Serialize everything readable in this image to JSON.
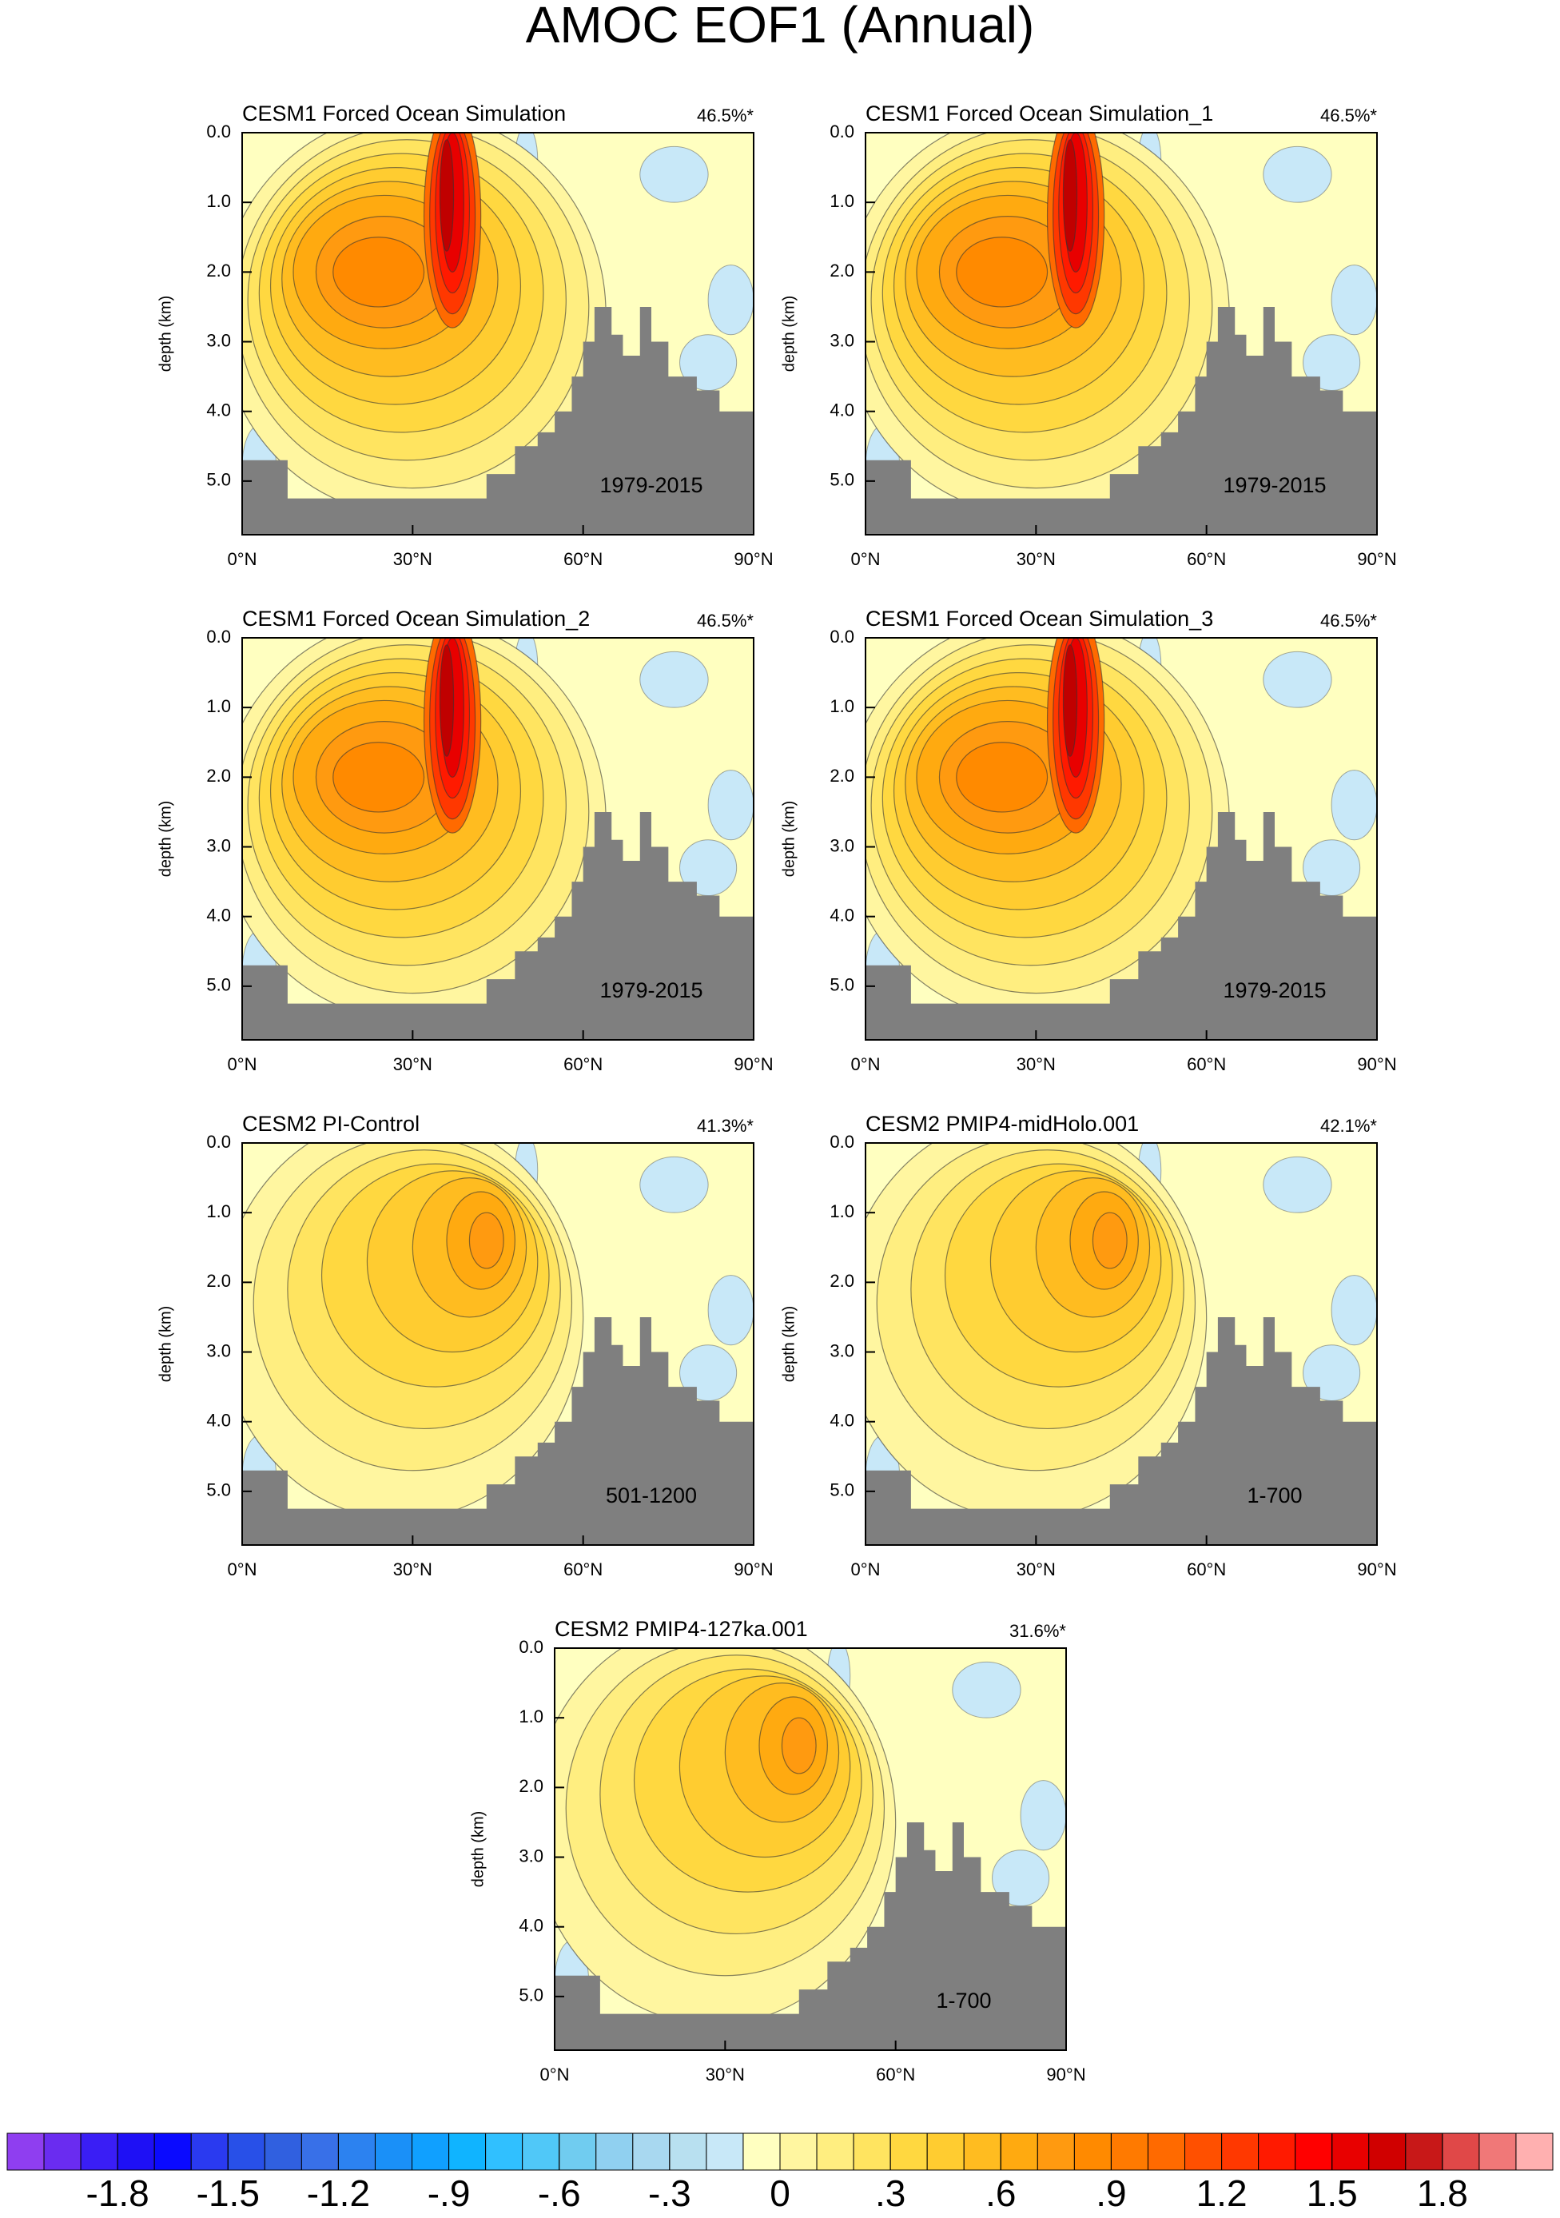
{
  "title": "AMOC EOF1 (Annual)",
  "chart_data": [
    {
      "type": "contour",
      "title": "CESM1 Forced Ocean Simulation",
      "variance": "46.5%*",
      "period": "1979-2015",
      "ylabel": "depth (km)",
      "xlim": [
        0,
        90
      ],
      "ylim": [
        0,
        5.77
      ],
      "xticks": [
        {
          "value": 0,
          "label": "0°N"
        },
        {
          "value": 30,
          "label": "30°N"
        },
        {
          "value": 60,
          "label": "60°N"
        },
        {
          "value": 90,
          "label": "90°N"
        }
      ],
      "yticks": [
        {
          "value": 0,
          "label": "0.0"
        },
        {
          "value": 1,
          "label": "1.0"
        },
        {
          "value": 2,
          "label": "2.0"
        },
        {
          "value": 3,
          "label": "3.0"
        },
        {
          "value": 4,
          "label": "4.0"
        },
        {
          "value": 5,
          "label": "5.0"
        }
      ]
    },
    {
      "type": "contour",
      "title": "CESM1 Forced Ocean Simulation_1",
      "variance": "46.5%*",
      "period": "1979-2015",
      "ylabel": "depth (km)",
      "xlim": [
        0,
        90
      ],
      "ylim": [
        0,
        5.77
      ],
      "xticks": [
        {
          "value": 0,
          "label": "0°N"
        },
        {
          "value": 30,
          "label": "30°N"
        },
        {
          "value": 60,
          "label": "60°N"
        },
        {
          "value": 90,
          "label": "90°N"
        }
      ],
      "yticks": [
        {
          "value": 0,
          "label": "0.0"
        },
        {
          "value": 1,
          "label": "1.0"
        },
        {
          "value": 2,
          "label": "2.0"
        },
        {
          "value": 3,
          "label": "3.0"
        },
        {
          "value": 4,
          "label": "4.0"
        },
        {
          "value": 5,
          "label": "5.0"
        }
      ]
    },
    {
      "type": "contour",
      "title": "CESM1 Forced Ocean Simulation_2",
      "variance": "46.5%*",
      "period": "1979-2015",
      "ylabel": "depth (km)",
      "xlim": [
        0,
        90
      ],
      "ylim": [
        0,
        5.77
      ],
      "xticks": [
        {
          "value": 0,
          "label": "0°N"
        },
        {
          "value": 30,
          "label": "30°N"
        },
        {
          "value": 60,
          "label": "60°N"
        },
        {
          "value": 90,
          "label": "90°N"
        }
      ],
      "yticks": [
        {
          "value": 0,
          "label": "0.0"
        },
        {
          "value": 1,
          "label": "1.0"
        },
        {
          "value": 2,
          "label": "2.0"
        },
        {
          "value": 3,
          "label": "3.0"
        },
        {
          "value": 4,
          "label": "4.0"
        },
        {
          "value": 5,
          "label": "5.0"
        }
      ]
    },
    {
      "type": "contour",
      "title": "CESM1 Forced Ocean Simulation_3",
      "variance": "46.5%*",
      "period": "1979-2015",
      "ylabel": "depth (km)",
      "xlim": [
        0,
        90
      ],
      "ylim": [
        0,
        5.77
      ],
      "xticks": [
        {
          "value": 0,
          "label": "0°N"
        },
        {
          "value": 30,
          "label": "30°N"
        },
        {
          "value": 60,
          "label": "60°N"
        },
        {
          "value": 90,
          "label": "90°N"
        }
      ],
      "yticks": [
        {
          "value": 0,
          "label": "0.0"
        },
        {
          "value": 1,
          "label": "1.0"
        },
        {
          "value": 2,
          "label": "2.0"
        },
        {
          "value": 3,
          "label": "3.0"
        },
        {
          "value": 4,
          "label": "4.0"
        },
        {
          "value": 5,
          "label": "5.0"
        }
      ]
    },
    {
      "type": "contour",
      "title": "CESM2 PI-Control",
      "variance": "41.3%*",
      "period": "501-1200",
      "ylabel": "depth (km)",
      "xlim": [
        0,
        90
      ],
      "ylim": [
        0,
        5.77
      ],
      "xticks": [
        {
          "value": 0,
          "label": "0°N"
        },
        {
          "value": 30,
          "label": "30°N"
        },
        {
          "value": 60,
          "label": "60°N"
        },
        {
          "value": 90,
          "label": "90°N"
        }
      ],
      "yticks": [
        {
          "value": 0,
          "label": "0.0"
        },
        {
          "value": 1,
          "label": "1.0"
        },
        {
          "value": 2,
          "label": "2.0"
        },
        {
          "value": 3,
          "label": "3.0"
        },
        {
          "value": 4,
          "label": "4.0"
        },
        {
          "value": 5,
          "label": "5.0"
        }
      ]
    },
    {
      "type": "contour",
      "title": "CESM2 PMIP4-midHolo.001",
      "variance": "42.1%*",
      "period": "1-700",
      "ylabel": "depth (km)",
      "xlim": [
        0,
        90
      ],
      "ylim": [
        0,
        5.77
      ],
      "xticks": [
        {
          "value": 0,
          "label": "0°N"
        },
        {
          "value": 30,
          "label": "30°N"
        },
        {
          "value": 60,
          "label": "60°N"
        },
        {
          "value": 90,
          "label": "90°N"
        }
      ],
      "yticks": [
        {
          "value": 0,
          "label": "0.0"
        },
        {
          "value": 1,
          "label": "1.0"
        },
        {
          "value": 2,
          "label": "2.0"
        },
        {
          "value": 3,
          "label": "3.0"
        },
        {
          "value": 4,
          "label": "4.0"
        },
        {
          "value": 5,
          "label": "5.0"
        }
      ]
    },
    {
      "type": "contour",
      "title": "CESM2 PMIP4-127ka.001",
      "variance": "31.6%*",
      "period": "1-700",
      "ylabel": "depth (km)",
      "xlim": [
        0,
        90
      ],
      "ylim": [
        0,
        5.77
      ],
      "xticks": [
        {
          "value": 0,
          "label": "0°N"
        },
        {
          "value": 30,
          "label": "30°N"
        },
        {
          "value": 60,
          "label": "60°N"
        },
        {
          "value": 90,
          "label": "90°N"
        }
      ],
      "yticks": [
        {
          "value": 0,
          "label": "0.0"
        },
        {
          "value": 1,
          "label": "1.0"
        },
        {
          "value": 2,
          "label": "2.0"
        },
        {
          "value": 3,
          "label": "3.0"
        },
        {
          "value": 4,
          "label": "4.0"
        },
        {
          "value": 5,
          "label": "5.0"
        }
      ]
    }
  ],
  "colorbar": {
    "lim": [
      -2.1,
      2.1
    ],
    "ticks": [
      -1.8,
      -1.5,
      -1.2,
      {
        "value": -0.9,
        "label": "-.9"
      },
      {
        "value": -0.6,
        "label": "-.6"
      },
      {
        "value": -0.3,
        "label": "-.3"
      },
      0,
      {
        "value": 0.3,
        "label": ".3"
      },
      {
        "value": 0.6,
        "label": ".6"
      },
      {
        "value": 0.9,
        "label": ".9"
      },
      1.2,
      1.5,
      1.8
    ],
    "colors": [
      "#8f3ef0",
      "#6a2cf0",
      "#3a1ef5",
      "#1e10f5",
      "#0a0aff",
      "#2a3af0",
      "#2850e8",
      "#3060e0",
      "#3870e8",
      "#2c82f0",
      "#1a90f8",
      "#10a0ff",
      "#10b4ff",
      "#30c0ff",
      "#50c8f8",
      "#70ccf0",
      "#90d0f0",
      "#a8d8f0",
      "#b8e0f0",
      "#c8e8f8",
      "#ffffc0",
      "#fff6a0",
      "#ffee80",
      "#ffe460",
      "#ffd840",
      "#ffcc30",
      "#ffbc20",
      "#ffaa10",
      "#ff9a10",
      "#ff8a00",
      "#ff7a00",
      "#ff6a00",
      "#ff5000",
      "#ff3800",
      "#ff1a00",
      "#ff0000",
      "#e80000",
      "#d00000",
      "#c81818",
      "#e04848",
      "#f07878",
      "#ffb0b0"
    ]
  }
}
